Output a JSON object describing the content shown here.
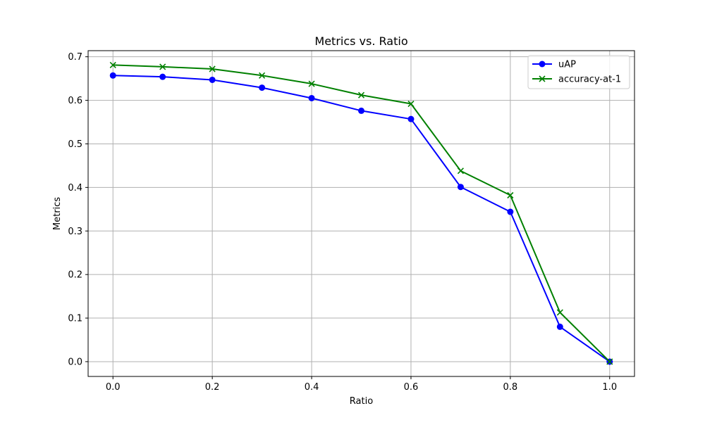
{
  "chart_data": {
    "type": "line",
    "title": "Metrics vs. Ratio",
    "xlabel": "Ratio",
    "ylabel": "Metrics",
    "xlim": [
      -0.05,
      1.05
    ],
    "ylim": [
      -0.034,
      0.714
    ],
    "xticks": [
      "0.0",
      "0.2",
      "0.4",
      "0.6",
      "0.8",
      "1.0"
    ],
    "yticks": [
      "0.0",
      "0.1",
      "0.2",
      "0.3",
      "0.4",
      "0.5",
      "0.6",
      "0.7"
    ],
    "grid": true,
    "legend_position": "top-right",
    "x": [
      0.0,
      0.1,
      0.2,
      0.3,
      0.4,
      0.5,
      0.6,
      0.7,
      0.8,
      0.9,
      1.0
    ],
    "series": [
      {
        "name": "uAP",
        "color": "#0000ff",
        "marker": "circle",
        "values": [
          0.657,
          0.654,
          0.647,
          0.629,
          0.605,
          0.576,
          0.557,
          0.401,
          0.344,
          0.08,
          0.0
        ]
      },
      {
        "name": "accuracy-at-1",
        "color": "#008000",
        "marker": "x",
        "values": [
          0.681,
          0.677,
          0.672,
          0.657,
          0.638,
          0.612,
          0.592,
          0.438,
          0.382,
          0.113,
          0.0
        ]
      }
    ]
  }
}
